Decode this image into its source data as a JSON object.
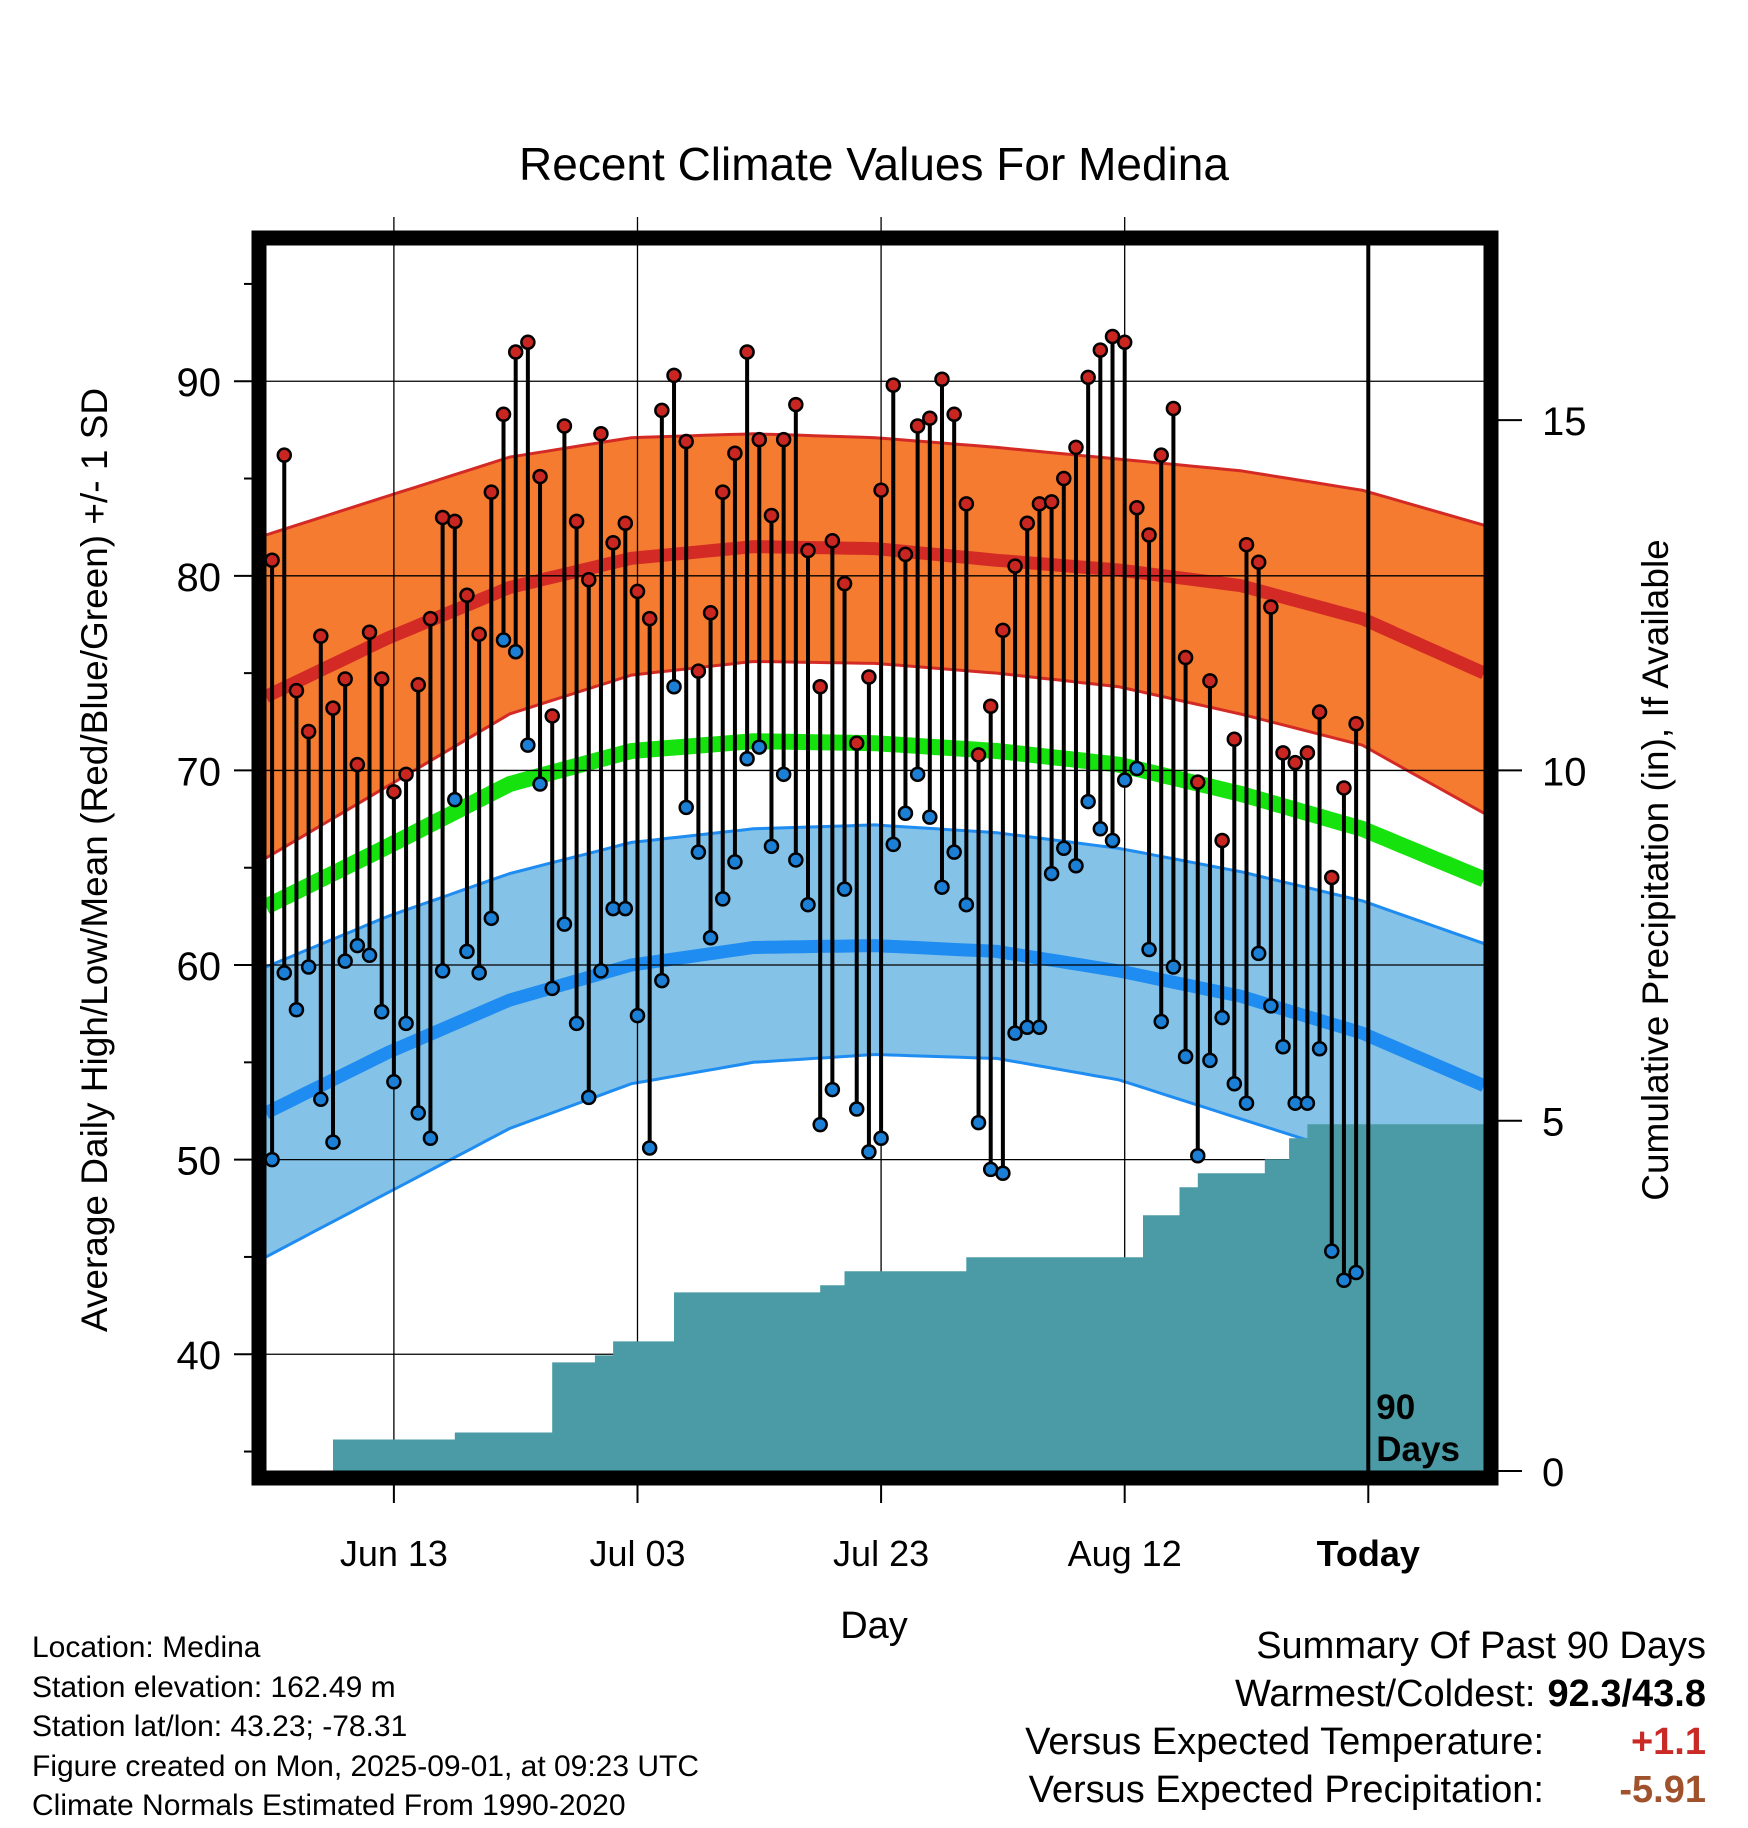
{
  "chart_data": {
    "type": "line",
    "title": "Recent Climate Values For Medina",
    "xlabel": "Day",
    "ylabel": "Average Daily High/Low/Mean (Red/Blue/Green) +/- 1 SD",
    "ylabel_right": "Cumulative Precipitation (in), If Available",
    "x_tick_labels": [
      "Jun 13",
      "Jul 03",
      "Jul 23",
      "Aug 12",
      "Today"
    ],
    "x_tick_days": [
      10.5,
      30.5,
      50.5,
      70.5,
      90.5
    ],
    "x_range": [
      0,
      100
    ],
    "ylim": [
      34,
      97
    ],
    "y_ticks": [
      40,
      50,
      60,
      70,
      80,
      90
    ],
    "y2_range": [
      0,
      17.5
    ],
    "y2_ticks": [
      0,
      5,
      10,
      15
    ],
    "grid": true,
    "today_marker_label": "90\nDays",
    "observed_high": [
      80.8,
      86.2,
      74.1,
      72.0,
      76.9,
      73.2,
      74.7,
      70.3,
      77.1,
      74.7,
      68.9,
      69.8,
      74.4,
      77.8,
      83.0,
      82.8,
      79.0,
      77.0,
      84.3,
      88.3,
      91.5,
      92.0,
      85.1,
      72.8,
      87.7,
      82.8,
      79.8,
      87.3,
      81.7,
      82.7,
      79.2,
      77.8,
      88.5,
      90.3,
      86.9,
      75.1,
      78.1,
      84.3,
      86.3,
      91.5,
      87.0,
      83.1,
      87.0,
      88.8,
      81.3,
      74.3,
      81.8,
      79.6,
      71.4,
      74.8,
      84.4,
      89.8,
      81.1,
      87.7,
      88.1,
      90.1,
      88.3,
      83.7,
      70.8,
      73.3,
      77.2,
      80.5,
      82.7,
      83.7,
      83.8,
      85.0,
      86.6,
      90.2,
      91.6,
      92.3,
      92.0,
      83.5,
      82.1,
      86.2,
      88.6,
      75.8,
      69.4,
      74.6,
      66.4,
      71.6,
      81.6,
      80.7,
      78.4,
      70.9,
      70.4,
      70.9,
      73.0,
      64.5,
      69.1,
      72.4
    ],
    "observed_low": [
      50.0,
      59.6,
      57.7,
      59.9,
      53.1,
      50.9,
      60.2,
      61.0,
      60.5,
      57.6,
      54.0,
      57.0,
      52.4,
      51.1,
      59.7,
      68.5,
      60.7,
      59.6,
      62.4,
      76.7,
      76.1,
      71.3,
      69.3,
      58.8,
      62.1,
      57.0,
      53.2,
      59.7,
      62.9,
      62.9,
      57.4,
      50.6,
      59.2,
      74.3,
      68.1,
      65.8,
      61.4,
      63.4,
      65.3,
      70.6,
      71.2,
      66.1,
      69.8,
      65.4,
      63.1,
      51.8,
      53.6,
      63.9,
      52.6,
      50.4,
      51.1,
      66.2,
      67.8,
      69.8,
      67.6,
      64.0,
      65.8,
      63.1,
      51.9,
      49.5,
      49.3,
      56.5,
      56.8,
      56.8,
      64.7,
      66.0,
      65.1,
      68.4,
      67.0,
      66.4,
      69.5,
      70.1,
      60.8,
      57.1,
      59.9,
      55.3,
      50.2,
      55.1,
      57.3,
      53.9,
      52.9,
      60.6,
      57.9,
      55.8,
      52.9,
      52.9,
      55.7,
      45.3,
      43.8,
      44.2
    ],
    "normal_high": {
      "days": [
        0,
        10,
        20,
        30,
        40,
        50,
        60,
        70,
        80,
        90,
        100
      ],
      "values": [
        73.8,
        76.8,
        79.4,
        80.9,
        81.5,
        81.4,
        80.8,
        80.3,
        79.5,
        77.8,
        75.0
      ]
    },
    "normal_high_plus_sd": {
      "days": [
        0,
        10,
        20,
        30,
        40,
        50,
        60,
        70,
        80,
        90,
        100
      ],
      "values": [
        82.1,
        84.1,
        86.1,
        87.1,
        87.3,
        87.1,
        86.6,
        86.0,
        85.4,
        84.4,
        82.6
      ]
    },
    "normal_high_minus_sd": {
      "days": [
        0,
        10,
        20,
        30,
        40,
        50,
        60,
        70,
        80,
        90,
        100
      ],
      "values": [
        65.5,
        69.2,
        72.9,
        74.9,
        75.6,
        75.5,
        75.0,
        74.3,
        72.9,
        71.3,
        67.8
      ]
    },
    "normal_mean": {
      "days": [
        0,
        10,
        20,
        30,
        40,
        50,
        60,
        70,
        80,
        90,
        100
      ],
      "values": [
        63.0,
        66.1,
        69.3,
        71.0,
        71.5,
        71.4,
        71.0,
        70.3,
        68.8,
        67.0,
        64.4
      ]
    },
    "normal_low": {
      "days": [
        0,
        10,
        20,
        30,
        40,
        50,
        60,
        70,
        80,
        90,
        100
      ],
      "values": [
        52.4,
        55.5,
        58.2,
        60.0,
        60.9,
        61.0,
        60.7,
        59.7,
        58.4,
        56.5,
        53.8
      ]
    },
    "normal_low_plus_sd": {
      "days": [
        0,
        10,
        20,
        30,
        40,
        50,
        60,
        70,
        80,
        90,
        100
      ],
      "values": [
        59.9,
        62.5,
        64.7,
        66.3,
        67.0,
        67.2,
        66.8,
        66.0,
        64.8,
        63.3,
        61.1
      ]
    },
    "normal_low_minus_sd": {
      "days": [
        0,
        10,
        20,
        30,
        40,
        50,
        60,
        70,
        80,
        90,
        100
      ],
      "values": [
        45.0,
        48.3,
        51.6,
        53.9,
        55.0,
        55.4,
        55.2,
        54.1,
        52.1,
        50.1,
        46.7
      ]
    },
    "cumulative_precip": {
      "days": [
        0,
        5.5,
        5.5,
        15.5,
        15.5,
        23.5,
        23.5,
        27.0,
        27.0,
        28.5,
        28.5,
        33.5,
        33.5,
        37.5,
        37.5,
        45.5,
        45.5,
        47.5,
        47.5,
        57.5,
        57.5,
        72.0,
        72.0,
        75.0,
        75.0,
        76.5,
        76.5,
        78.5,
        78.5,
        82.0,
        82.0,
        84.0,
        84.0,
        85.5,
        85.5,
        86.0,
        86.0,
        100.0
      ],
      "values": [
        0.0,
        0.0,
        0.45,
        0.45,
        0.55,
        0.55,
        1.55,
        1.55,
        1.65,
        1.65,
        1.85,
        1.85,
        2.55,
        2.55,
        2.55,
        2.55,
        2.65,
        2.65,
        2.85,
        2.85,
        3.05,
        3.05,
        3.65,
        3.65,
        4.05,
        4.05,
        4.25,
        4.25,
        4.25,
        4.25,
        4.45,
        4.45,
        4.75,
        4.75,
        4.95,
        4.95,
        4.95,
        4.95
      ]
    },
    "colors": {
      "high_band": "#f47b2f",
      "high_line": "#d42a25",
      "mean_line": "#16e30d",
      "low_band": "#84c2e8",
      "low_line": "#1e8cf0",
      "precip": "#4a9ba5",
      "high_marker": "#c92621",
      "low_marker": "#1c7fd6"
    }
  },
  "info": {
    "location": "Location: Medina",
    "elevation": "Station elevation: 162.49 m",
    "latlon": "Station lat/lon: 43.23; -78.31",
    "created": "Figure created on Mon, 2025-09-01, at 09:23 UTC",
    "normals": "Climate Normals Estimated From 1990-2020"
  },
  "summary": {
    "title": "Summary Of Past 90 Days",
    "warmest_coldest_label": "Warmest/Coldest:",
    "warmest": "92.3",
    "slash": "/",
    "coldest": "43.8",
    "temp_label": "Versus Expected Temperature:",
    "temp_value": "+1.1",
    "temp_color": "#c92a25",
    "precip_label": "Versus Expected Precipitation:",
    "precip_value": "-5.91",
    "precip_color": "#a0522d"
  }
}
